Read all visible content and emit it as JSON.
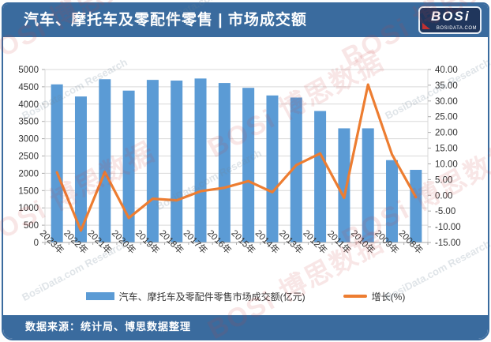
{
  "header": {
    "title": "汽车、摩托车及零配件零售 | 市场成交额",
    "logo": {
      "brand": "BOSi",
      "domain": "BOSIDATA.COM"
    }
  },
  "footer": {
    "source": "数据来源：统计局、博思数据整理"
  },
  "legend": {
    "bar_label": "汽车、摩托车及零配件零售市场成交额(亿元)",
    "line_label": "增长(%)"
  },
  "colors": {
    "bar": "#5b9bd5",
    "line": "#ed7d31",
    "band": "#3a6b9e",
    "grid": "#d9d9d9",
    "axis_text": "#333333",
    "logo_bg": "#20365c",
    "logo_accent": "#c23030"
  },
  "watermark": {
    "texts_red": [
      "BOSi 博思数据",
      "博思数据 BOSi"
    ],
    "texts_gray": [
      "BosiData Research",
      "BosiData.com Research"
    ]
  },
  "chart_data": {
    "type": "bar",
    "combo": "bar+line",
    "title": "汽车、摩托车及零配件零售 | 市场成交额",
    "categories": [
      "2023年",
      "2022年",
      "2021年",
      "2020年",
      "2019年",
      "2018年",
      "2017年",
      "2016年",
      "2015年",
      "2014年",
      "2013年",
      "2012年",
      "2011年",
      "2010年",
      "2009年",
      "2008年"
    ],
    "series": [
      {
        "name": "汽车、摩托车及零配件零售市场成交额(亿元)",
        "type": "bar",
        "axis": "left",
        "color": "#5b9bd5",
        "values": [
          4570,
          4220,
          4720,
          4390,
          4700,
          4680,
          4740,
          4610,
          4470,
          4250,
          4190,
          3800,
          3300,
          3300,
          2380,
          2100
        ]
      },
      {
        "name": "增长(%)",
        "type": "line",
        "axis": "right",
        "color": "#ed7d31",
        "values": [
          7.3,
          -11.2,
          7.4,
          -7.2,
          -1.1,
          -1.6,
          1.3,
          2.4,
          4.5,
          1.0,
          9.6,
          13.3,
          -0.8,
          35.2,
          13.0,
          -0.6
        ]
      }
    ],
    "left_axis": {
      "label": "",
      "min": 0,
      "max": 5000,
      "step": 500
    },
    "right_axis": {
      "label": "",
      "min": -15,
      "max": 40,
      "step": 5,
      "decimals": 2
    },
    "grid": true,
    "legend_position": "bottom",
    "x_label_rotation": 45
  }
}
